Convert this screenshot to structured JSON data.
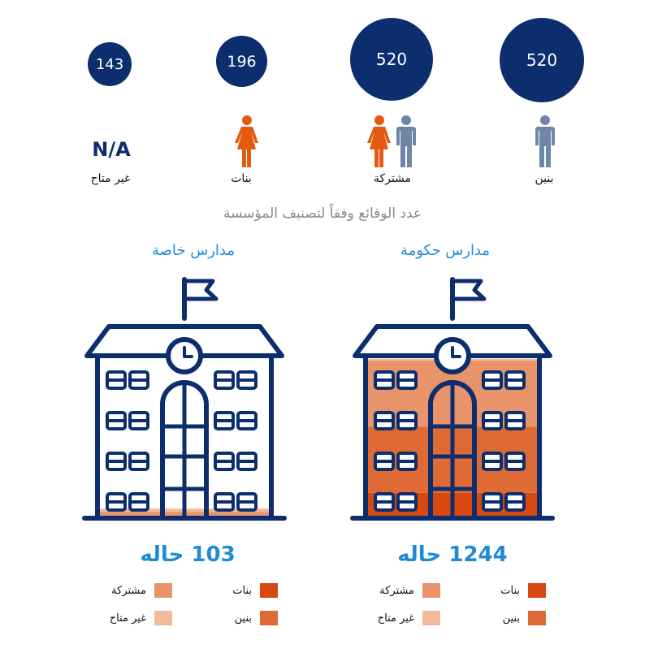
{
  "colors": {
    "navy": "#0d2e6e",
    "blue_accent": "#1f8bd6",
    "person_gray": "#6f86a8",
    "person_orange": "#e25b10",
    "girls": "#d9480f",
    "boys": "#e06a35",
    "mixed": "#e8936a",
    "na": "#f2b99a"
  },
  "top_stats": [
    {
      "key": "boys",
      "value": "520",
      "label": "بنين",
      "icon": "male-person-icon"
    },
    {
      "key": "mixed",
      "value": "520",
      "label": "مشتركة",
      "icon": "female-and-male-persons-icon"
    },
    {
      "key": "girls",
      "value": "196",
      "label": "بنات",
      "icon": "female-person-icon"
    },
    {
      "key": "na",
      "value": "143",
      "label": "غير متاح",
      "icon_text": "N/A"
    }
  ],
  "subtitle": "عدد الوقائع وفقاً لتصنيف المؤسسة",
  "schools": [
    {
      "title": "مدارس حكومة",
      "count_label": "1244 حاله",
      "icon": "school-building-icon",
      "fill_segments": [
        {
          "key": "girls",
          "fraction": 0.15
        },
        {
          "key": "boys",
          "fraction": 0.42
        },
        {
          "key": "mixed",
          "fraction": 0.42
        },
        {
          "key": "na",
          "fraction": 0.01
        }
      ],
      "legend": [
        {
          "key": "girls",
          "label": "بنات"
        },
        {
          "key": "mixed",
          "label": "مشتركة"
        },
        {
          "key": "boys",
          "label": "بنين"
        },
        {
          "key": "na",
          "label": "غير متاح"
        }
      ]
    },
    {
      "title": "مدارس خاصة",
      "count_label": "103 حاله",
      "icon": "school-building-icon",
      "fill_segments": [
        {
          "key": "mixed",
          "fraction": 0.03
        },
        {
          "key": "na",
          "fraction": 0.02
        }
      ],
      "legend": [
        {
          "key": "girls",
          "label": "بنات"
        },
        {
          "key": "mixed",
          "label": "مشتركة"
        },
        {
          "key": "boys",
          "label": "بنين"
        },
        {
          "key": "na",
          "label": "غير متاح"
        }
      ]
    }
  ],
  "chart_data": [
    {
      "type": "table",
      "categories": [
        "بنين",
        "مشتركة",
        "بنات",
        "غير متاح"
      ],
      "values": [
        520,
        520,
        196,
        143
      ]
    },
    {
      "type": "bar",
      "categories": [
        "مدارس حكومة",
        "مدارس خاصة"
      ],
      "values": [
        1244,
        103
      ],
      "legend": [
        "بنات",
        "مشتركة",
        "بنين",
        "غير متاح"
      ]
    }
  ]
}
